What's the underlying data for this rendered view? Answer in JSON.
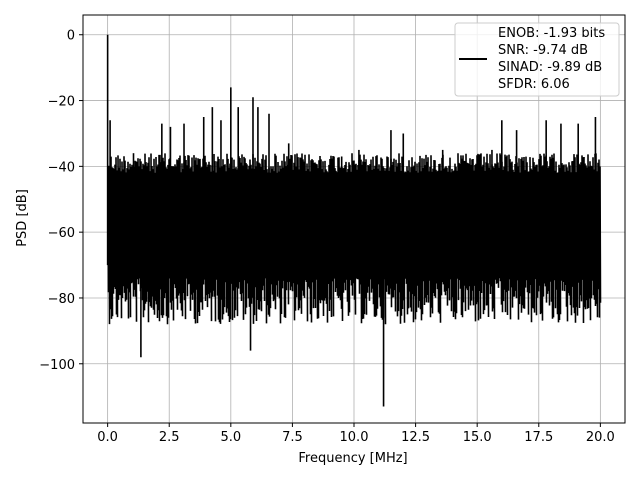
{
  "chart_data": {
    "type": "line",
    "title": "",
    "xlabel": "Frequency [MHz]",
    "ylabel": "PSD [dB]",
    "xlim": [
      -1.0,
      21.0
    ],
    "ylim": [
      -118,
      6
    ],
    "xticks": [
      0.0,
      2.5,
      5.0,
      7.5,
      10.0,
      12.5,
      15.0,
      17.5,
      20.0
    ],
    "xtick_labels": [
      "0.0",
      "2.5",
      "5.0",
      "7.5",
      "10.0",
      "12.5",
      "15.0",
      "17.5",
      "20.0"
    ],
    "yticks": [
      0,
      -20,
      -40,
      -60,
      -80,
      -100
    ],
    "ytick_labels": [
      "0",
      "−20",
      "−40",
      "−60",
      "−80",
      "−100"
    ],
    "grid": true,
    "legend_placement": "top-right",
    "series": [
      {
        "color": "#000000",
        "noise_band_db": [
          -80,
          -36
        ],
        "peaks": [
          {
            "x": 0.0,
            "y": 0
          },
          {
            "x": 0.1,
            "y": -26
          },
          {
            "x": 1.05,
            "y": -36
          },
          {
            "x": 1.35,
            "y": -98
          },
          {
            "x": 2.2,
            "y": -27
          },
          {
            "x": 2.55,
            "y": -28
          },
          {
            "x": 3.1,
            "y": -27
          },
          {
            "x": 3.9,
            "y": -25
          },
          {
            "x": 4.25,
            "y": -22
          },
          {
            "x": 4.6,
            "y": -26
          },
          {
            "x": 5.0,
            "y": -16
          },
          {
            "x": 5.3,
            "y": -22
          },
          {
            "x": 5.9,
            "y": -19
          },
          {
            "x": 6.1,
            "y": -22
          },
          {
            "x": 6.55,
            "y": -24
          },
          {
            "x": 5.8,
            "y": -96
          },
          {
            "x": 7.35,
            "y": -33
          },
          {
            "x": 9.5,
            "y": -37
          },
          {
            "x": 10.2,
            "y": -35
          },
          {
            "x": 11.2,
            "y": -113
          },
          {
            "x": 11.5,
            "y": -29
          },
          {
            "x": 12.0,
            "y": -30
          },
          {
            "x": 13.6,
            "y": -35
          },
          {
            "x": 15.6,
            "y": -35
          },
          {
            "x": 16.0,
            "y": -26
          },
          {
            "x": 16.6,
            "y": -29
          },
          {
            "x": 17.8,
            "y": -26
          },
          {
            "x": 18.4,
            "y": -27
          },
          {
            "x": 19.1,
            "y": -27
          },
          {
            "x": 19.8,
            "y": -25
          }
        ]
      }
    ],
    "legend": {
      "entries": [
        "ENOB: -1.93 bits",
        "SNR: -9.74 dB",
        "SINAD: -9.89 dB",
        "SFDR: 6.06"
      ]
    }
  }
}
